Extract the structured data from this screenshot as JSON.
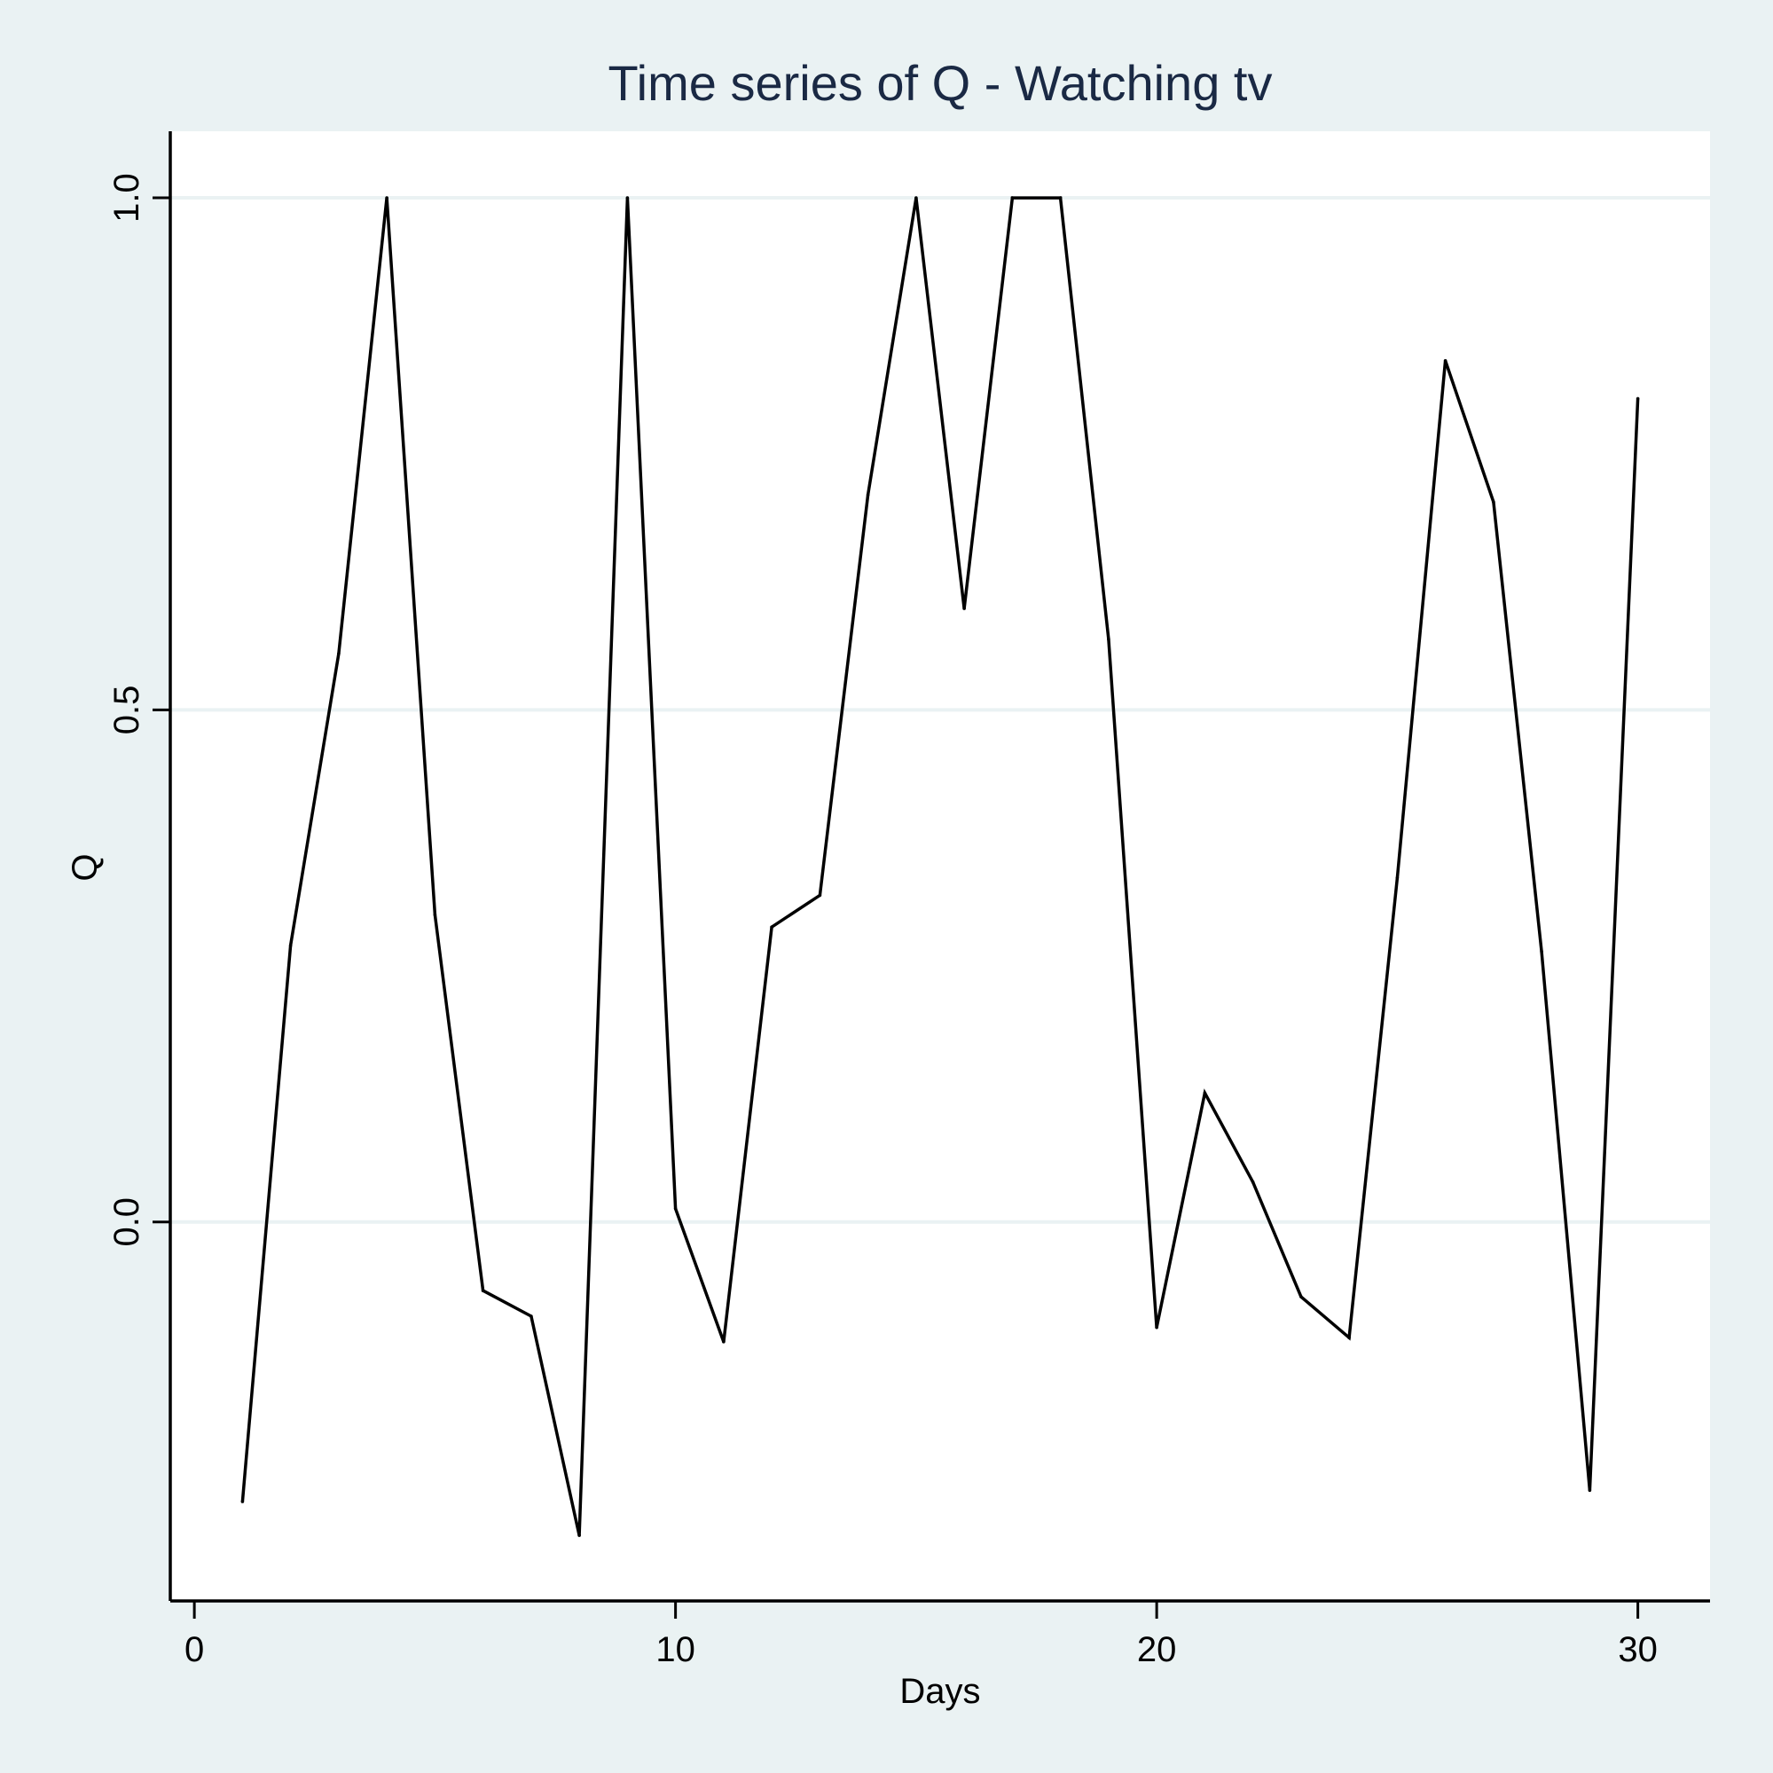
{
  "chart_data": {
    "type": "line",
    "title": "Time series of Q - Watching tv",
    "xlabel": "Days",
    "ylabel": "Q",
    "xlim": [
      -0.5,
      31.5
    ],
    "ylim": [
      -0.37,
      1.065
    ],
    "x_ticks": [
      0,
      10,
      20,
      30
    ],
    "x_tick_labels": [
      "0",
      "10",
      "20",
      "30"
    ],
    "y_ticks": [
      0,
      0.5,
      1
    ],
    "y_tick_labels": [
      "0.0",
      "0.5",
      "1.0"
    ],
    "grid": "horizontal",
    "series": [
      {
        "x": [
          1,
          2,
          3,
          4,
          5,
          6,
          7,
          8,
          9,
          10,
          11,
          12,
          13,
          14,
          15,
          16,
          17,
          18,
          19,
          20,
          21,
          22,
          23,
          24,
          25,
          26,
          27,
          28,
          29,
          30
        ],
        "y": [
          -0.273,
          0.27,
          0.555,
          1.0,
          0.3,
          -0.067,
          -0.092,
          -0.306,
          1.0,
          0.013,
          -0.117,
          0.288,
          0.319,
          0.71,
          1.0,
          0.599,
          1.0,
          1.0,
          0.569,
          -0.103,
          0.126,
          0.039,
          -0.073,
          -0.113,
          0.336,
          0.841,
          0.703,
          0.264,
          -0.262,
          0.804
        ]
      }
    ],
    "colors": {
      "background": "#eaf2f3",
      "plot_background": "#ffffff",
      "grid": "#eaf2f3",
      "line": "#000000",
      "title": "#1a2944"
    }
  }
}
